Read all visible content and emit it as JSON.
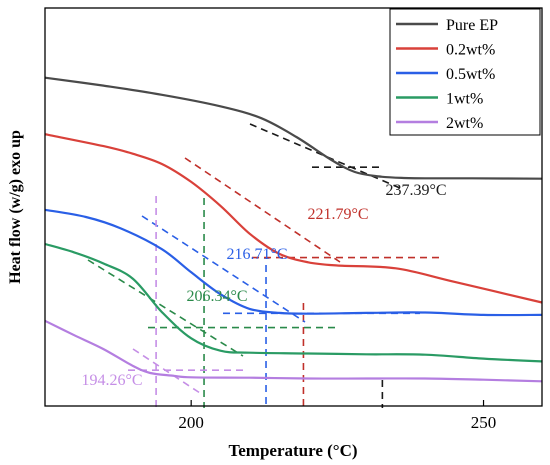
{
  "chart_data": {
    "type": "line",
    "title": "",
    "xlabel": "Temperature (°C)",
    "ylabel": "Heat flow (w/g) exo up",
    "xlim": [
      175,
      260
    ],
    "ylim": [
      0,
      100
    ],
    "x_ticks": [
      200,
      250
    ],
    "x_tick_labels": [
      "200",
      "250"
    ],
    "y_ticks_shown": false,
    "grid": false,
    "legend_position": "top-right",
    "series": [
      {
        "name": "Pure EP",
        "color": "#4a4a4a",
        "x": [
          175,
          185,
          195,
          205,
          212,
          218,
          224,
          228,
          232,
          236,
          240,
          248,
          260
        ],
        "y": [
          82.5,
          80.5,
          78.2,
          75.3,
          72.3,
          67.6,
          61.8,
          58.8,
          57.7,
          57.3,
          57.2,
          57.2,
          57.1
        ]
      },
      {
        "name": "0.2wt%",
        "color": "#d9413a",
        "x": [
          175,
          185,
          190,
          195,
          200,
          205,
          210,
          215,
          220,
          225,
          235,
          245,
          260
        ],
        "y": [
          68.3,
          65.3,
          63.4,
          60.8,
          56.3,
          50.3,
          43.3,
          38.3,
          36.1,
          35.3,
          34.6,
          31.2,
          26.0
        ]
      },
      {
        "name": "0.5wt%",
        "color": "#2a5fe6",
        "x": [
          175,
          182,
          188,
          195,
          200,
          205,
          210,
          215,
          220,
          230,
          240,
          250,
          260
        ],
        "y": [
          49.3,
          47.5,
          44.6,
          39.4,
          33.6,
          28.1,
          24.4,
          23.4,
          23.2,
          23.4,
          23.5,
          22.9,
          22.9
        ]
      },
      {
        "name": "1wt%",
        "color": "#2a9b64",
        "x": [
          175,
          180,
          185,
          190,
          195,
          200,
          205,
          210,
          220,
          230,
          240,
          250,
          260
        ],
        "y": [
          40.7,
          38.6,
          35.8,
          32.0,
          23.6,
          17.0,
          13.9,
          13.4,
          13.2,
          13.0,
          12.9,
          11.9,
          11.2
        ]
      },
      {
        "name": "2wt%",
        "color": "#b47ee0",
        "x": [
          175,
          180,
          185,
          190,
          193,
          197,
          200,
          210,
          220,
          230,
          240,
          250,
          260
        ],
        "y": [
          21.4,
          17.8,
          14.3,
          10.1,
          8.3,
          7.6,
          7.2,
          7.1,
          6.9,
          6.9,
          6.9,
          6.6,
          6.2
        ]
      }
    ],
    "annotations": [
      {
        "text": "237.39°C",
        "color": "#1a1a1a",
        "series": "Pure EP",
        "vline_x": 232.7,
        "hline_y": 60.0
      },
      {
        "text": "221.79°C",
        "color": "#c0302a",
        "series": "0.2wt%",
        "vline_x": 219.2,
        "hline_y": 37.3
      },
      {
        "text": "216.71°C",
        "color": "#2a5fe6",
        "series": "0.5wt%",
        "vline_x": 212.8,
        "hline_y": 23.3
      },
      {
        "text": "206.34°C",
        "color": "#2a8a4a",
        "series": "1wt%",
        "vline_x": 202.2,
        "hline_y": 19.7
      },
      {
        "text": "194.26°C",
        "color": "#c58ee6",
        "series": "2wt%",
        "vline_x": 194.0,
        "hline_y": 9.0
      }
    ]
  }
}
